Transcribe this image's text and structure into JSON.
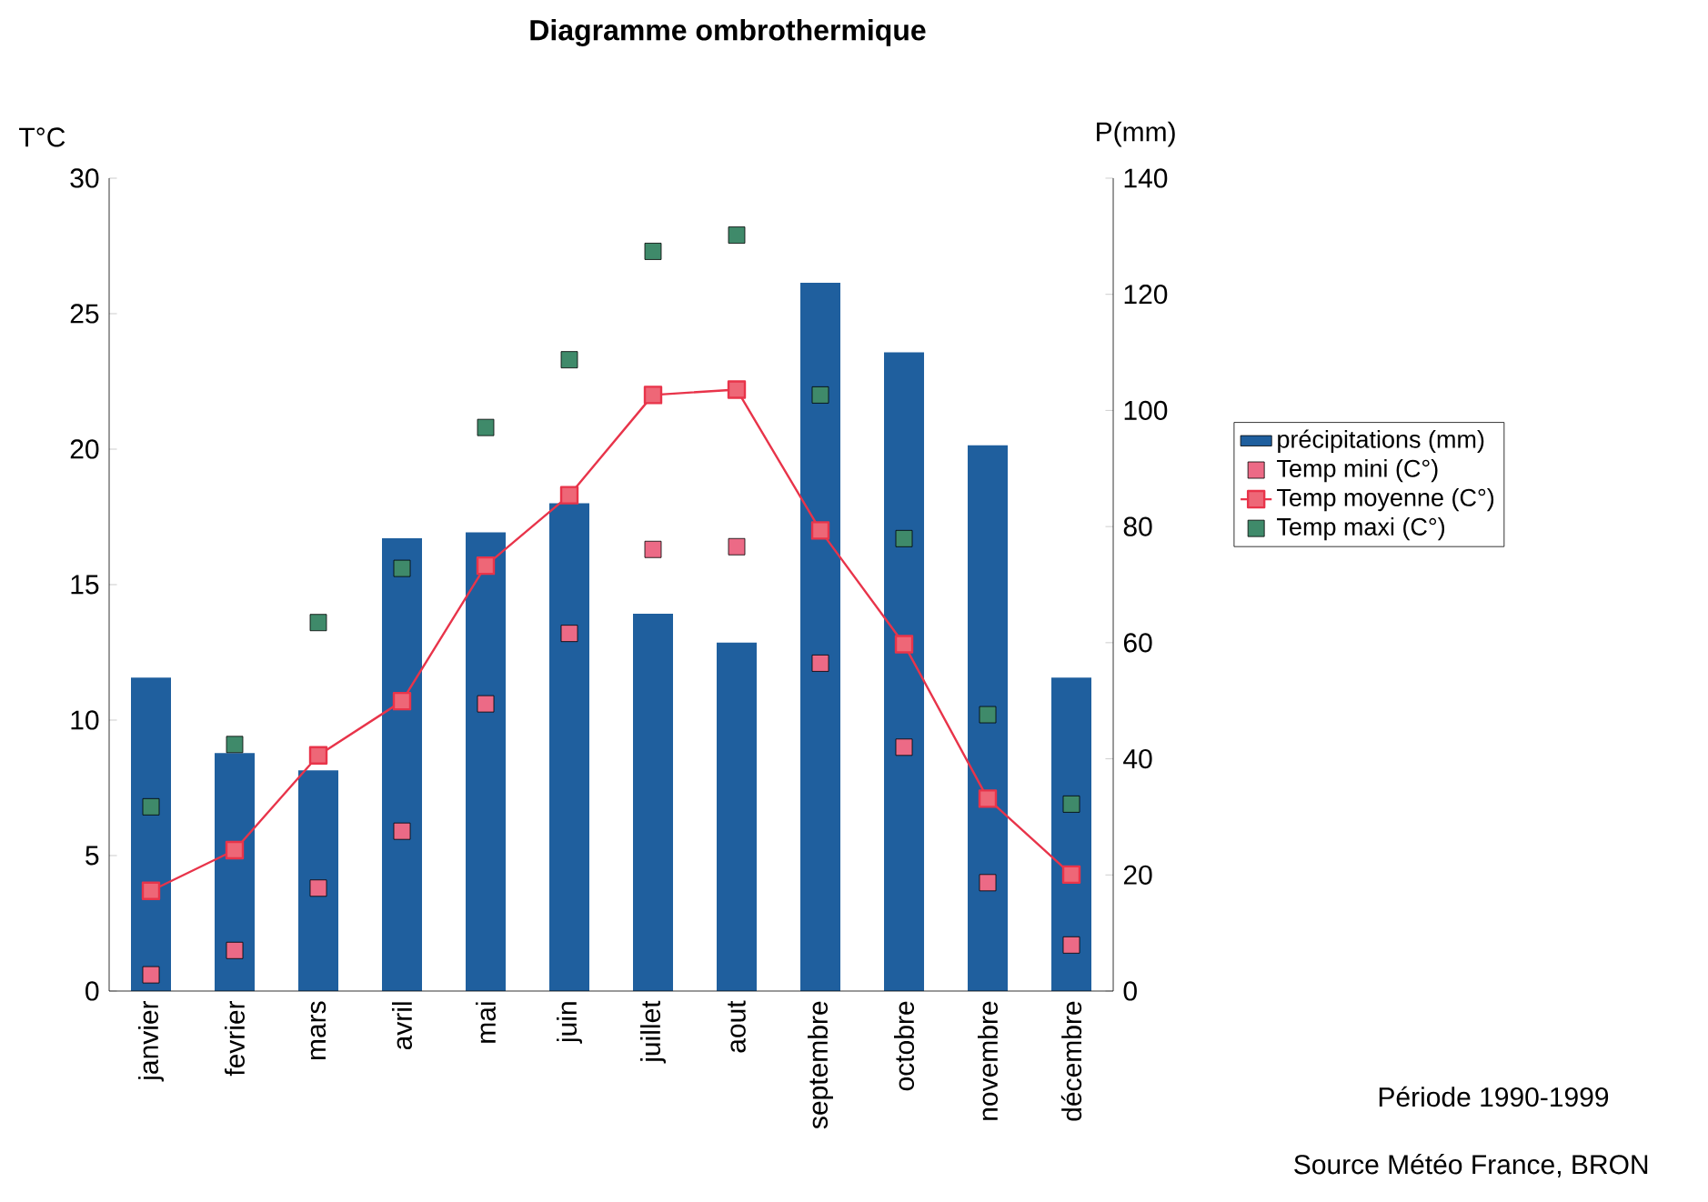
{
  "chart_data": {
    "type": "bar",
    "title": "Diagramme ombrothermique",
    "ylabel": "T°C",
    "y2label": "P(mm)",
    "categories": [
      "janvier",
      "fevrier",
      "mars",
      "avril",
      "mai",
      "juin",
      "juillet",
      "aout",
      "septembre",
      "octobre",
      "novembre",
      "décembre"
    ],
    "series": [
      {
        "name": "précipitations (mm)",
        "axis": "y2",
        "color": "#1f5f9e",
        "values": [
          54,
          41,
          38,
          78,
          79,
          84,
          65,
          60,
          122,
          110,
          94,
          54
        ]
      },
      {
        "name": "Temp mini (C°)",
        "type": "scatter",
        "color": "#ec6a86",
        "values": [
          0.6,
          1.5,
          3.8,
          5.9,
          10.6,
          13.2,
          16.3,
          16.4,
          12.1,
          9.0,
          4.0,
          1.7
        ]
      },
      {
        "name": "Temp moyenne (C°)",
        "type": "line",
        "color": "#e8344a",
        "values": [
          3.7,
          5.2,
          8.7,
          10.7,
          15.7,
          18.3,
          22.0,
          22.2,
          17.0,
          12.8,
          7.1,
          4.3
        ]
      },
      {
        "name": "Temp maxi (C°)",
        "type": "scatter",
        "color": "#3f8a6a",
        "values": [
          6.8,
          9.1,
          13.6,
          15.6,
          20.8,
          23.3,
          27.3,
          27.9,
          22.0,
          16.7,
          10.2,
          6.9
        ]
      }
    ],
    "ylim": [
      0,
      30
    ],
    "yticks": [
      0,
      5,
      10,
      15,
      20,
      25,
      30
    ],
    "y2lim": [
      0,
      140
    ],
    "y2ticks": [
      0,
      20,
      40,
      60,
      80,
      100,
      120,
      140
    ],
    "legend": "right",
    "marker": "square",
    "grid": false,
    "annotations": [
      "Période 1990-1999",
      "Source Météo France, BRON"
    ]
  }
}
